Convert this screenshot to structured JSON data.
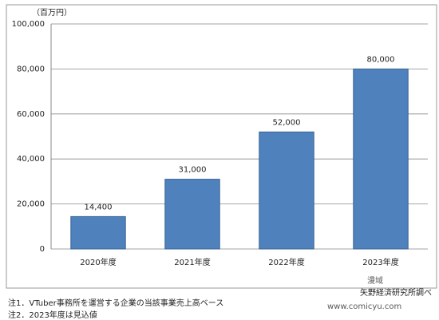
{
  "chart_data": {
    "type": "bar",
    "y_unit_label": "（百万円）",
    "categories": [
      "2020年度",
      "2021年度",
      "2022年度",
      "2023年度"
    ],
    "values": [
      14400,
      31000,
      52000,
      80000
    ],
    "value_labels": [
      "14,400",
      "31,000",
      "52,000",
      "80,000"
    ],
    "color": "#4f81bd",
    "ylim": [
      0,
      100000
    ],
    "yticks": [
      0,
      {
        "value": 20000,
        "label": "20,000"
      },
      {
        "value": 40000,
        "label": "40,000"
      },
      {
        "value": 60000,
        "label": "60,000"
      },
      {
        "value": 80000,
        "label": "80,000"
      },
      {
        "value": 100000,
        "label": "100,000"
      }
    ],
    "grid": true,
    "source": "矢野経済研究所調べ",
    "notes": [
      "注1．VTuber事務所を運営する企業の当該事業売上高ベース",
      "注2．2023年度は見込値"
    ],
    "watermark": "漫域",
    "watermark_url": "www.comicyu.com"
  }
}
